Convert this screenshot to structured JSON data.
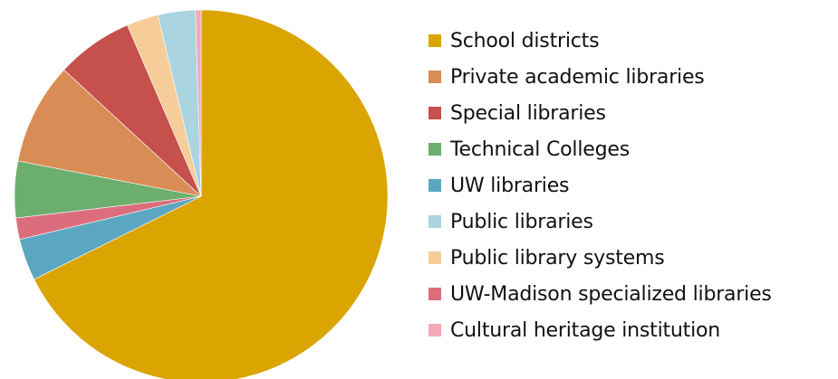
{
  "chart_data": {
    "type": "pie",
    "title": "",
    "start_angle_deg": 0,
    "direction": "clockwise",
    "legend_position": "right",
    "slices": [
      {
        "label": "School districts",
        "value": 69.0,
        "color": "#DAA500"
      },
      {
        "label": "UW libraries",
        "value": 3.7,
        "color": "#5BA6C0"
      },
      {
        "label": "UW-Madison specialized libraries",
        "value": 1.9,
        "color": "#DC6D7D"
      },
      {
        "label": "Technical Colleges",
        "value": 5.0,
        "color": "#6CAE6E"
      },
      {
        "label": "Private academic libraries",
        "value": 9.0,
        "color": "#D98C55"
      },
      {
        "label": "Special libraries",
        "value": 6.8,
        "color": "#C5504C"
      },
      {
        "label": "Public library systems",
        "value": 2.8,
        "color": "#F6CC98"
      },
      {
        "label": "Public libraries",
        "value": 3.3,
        "color": "#A9D4E0"
      },
      {
        "label": "Cultural heritage institution",
        "value": 0.5,
        "color": "#F4A9B7"
      }
    ],
    "legend": [
      {
        "label": "School districts",
        "color": "#DAA500"
      },
      {
        "label": "Private academic libraries",
        "color": "#D98C55"
      },
      {
        "label": "Special libraries",
        "color": "#C5504C"
      },
      {
        "label": "Technical Colleges",
        "color": "#6CAE6E"
      },
      {
        "label": "UW libraries",
        "color": "#5BA6C0"
      },
      {
        "label": "Public libraries",
        "color": "#A9D4E0"
      },
      {
        "label": "Public library systems",
        "color": "#F6CC98"
      },
      {
        "label": "UW-Madison specialized libraries",
        "color": "#DC6D7D"
      },
      {
        "label": "Cultural heritage institution",
        "color": "#F4A9B7"
      }
    ]
  }
}
